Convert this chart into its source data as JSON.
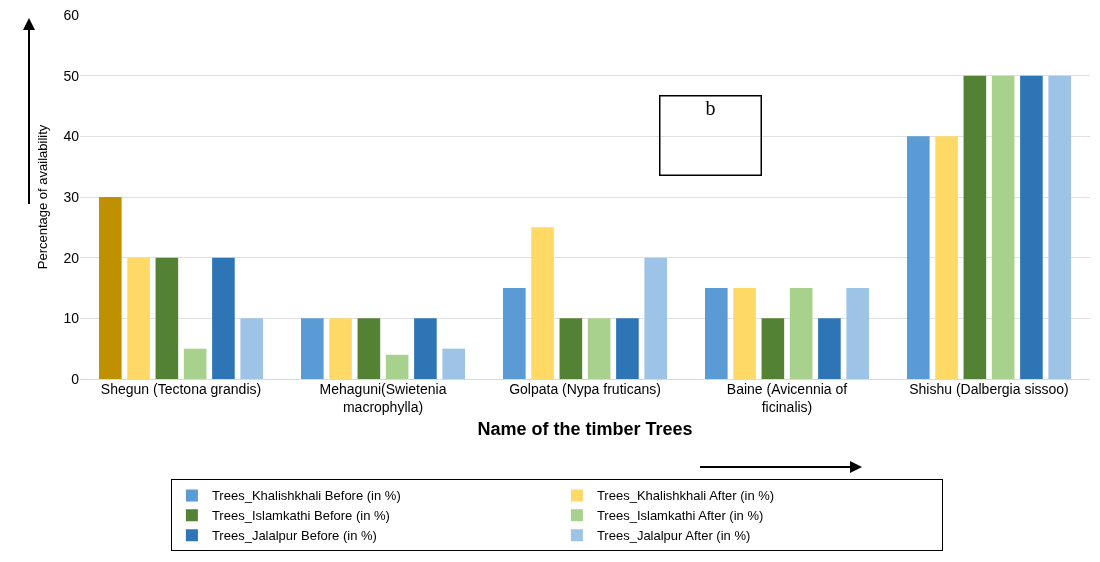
{
  "chart_data": {
    "type": "bar",
    "xlabel": "Name of the timber Trees",
    "ylabel": "Percentage of availability",
    "categories": [
      "Shegun (Tectona grandis)",
      "Mehaguni(Swietenia macrophylla)",
      "Golpata (Nypa fruticans)",
      "Baine (Avicennia of ficinalis)",
      "Shishu (Dalbergia sissoo)"
    ],
    "series": [
      {
        "name": "Trees_Khalishkhali Before (in %)",
        "color": "#5b9bd5",
        "colors": [
          "#bf9000",
          "#5b9bd5",
          "#5b9bd5",
          "#5b9bd5",
          "#5b9bd5"
        ],
        "values": [
          30,
          10,
          15,
          15,
          40
        ]
      },
      {
        "name": "Trees_Khalishkhali After (in %)",
        "color": "#ffd966",
        "values": [
          20,
          10,
          25,
          15,
          40
        ]
      },
      {
        "name": "Trees_Islamkathi Before (in %)",
        "color": "#548235",
        "values": [
          20,
          10,
          10,
          10,
          50
        ]
      },
      {
        "name": "Trees_Islamkathi After (in %)",
        "color": "#a9d18e",
        "values": [
          5,
          4,
          10,
          15,
          50
        ]
      },
      {
        "name": "Trees_Jalalpur Before (in %)",
        "color": "#2e75b6",
        "values": [
          20,
          10,
          10,
          10,
          50
        ]
      },
      {
        "name": "Trees_Jalalpur After (in %)",
        "color": "#9dc3e6",
        "values": [
          10,
          5,
          20,
          15,
          50
        ]
      }
    ],
    "ylim": [
      0,
      60
    ],
    "yticks": [
      0,
      10,
      20,
      30,
      40,
      50,
      60
    ],
    "grid": "y",
    "legend": "bottom",
    "annotations": [
      "b"
    ]
  }
}
